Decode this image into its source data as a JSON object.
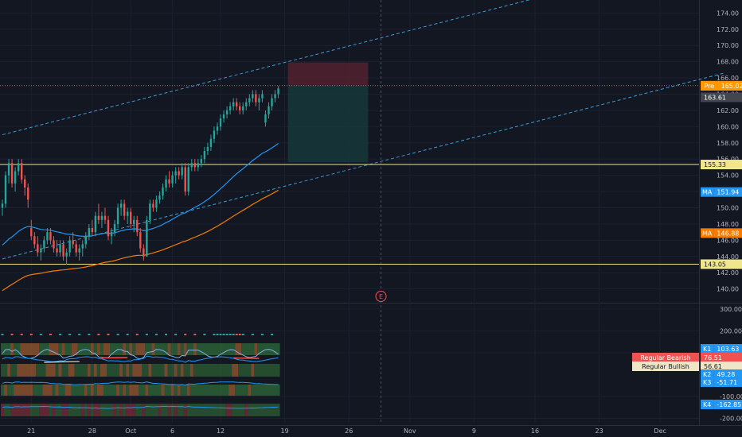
{
  "colors": {
    "background": "#131722",
    "grid": "#1c2030",
    "up": "#26a69a",
    "down": "#ef5350",
    "ma_fast": "#2196f3",
    "ma_slow": "#f57c00",
    "level": "#f0e68c",
    "channel": "#3d9ad1",
    "current": "#ef5350",
    "pre": "#ff9800"
  },
  "chart_data": [
    {
      "type": "candlestick",
      "title": "",
      "y_axis": {
        "ticks": [
          "174.00",
          "172.00",
          "170.00",
          "168.00",
          "166.00",
          "164.00",
          "162.00",
          "160.00",
          "158.00",
          "156.00",
          "154.00",
          "152.00",
          "150.00",
          "148.00",
          "146.00",
          "144.00",
          "142.00",
          "140.00"
        ],
        "range": [
          138.3,
          175.6
        ]
      },
      "x_axis": {
        "ticks": [
          "21",
          "28",
          "Oct",
          "6",
          "12",
          "19",
          "26",
          "Nov",
          "9",
          "16",
          "23",
          "Dec"
        ],
        "tick_bar_index": [
          9,
          28,
          40,
          53,
          68,
          88,
          108,
          127,
          147,
          166,
          186,
          205
        ]
      },
      "bars": [
        [
          150,
          151,
          149,
          150.5
        ],
        [
          150.5,
          154.5,
          150,
          154
        ],
        [
          154,
          156,
          153,
          155.5
        ],
        [
          155.5,
          156,
          152.5,
          153
        ],
        [
          153,
          155,
          152,
          154.5
        ],
        [
          154.5,
          156,
          154,
          155.5
        ],
        [
          155.5,
          156,
          153,
          153.5
        ],
        [
          153.5,
          154,
          151.5,
          152.5
        ],
        [
          152.5,
          153,
          150,
          151
        ],
        [
          147.5,
          148.5,
          146,
          146.5
        ],
        [
          146.5,
          147,
          145,
          145.5
        ],
        [
          145.5,
          146.5,
          144,
          144.5
        ],
        [
          144.5,
          145.5,
          143.5,
          145
        ],
        [
          145,
          146.5,
          144.5,
          146
        ],
        [
          146,
          147.5,
          145.5,
          147
        ],
        [
          147,
          147.5,
          145.5,
          146
        ],
        [
          146,
          146.5,
          144.5,
          145
        ],
        [
          145,
          146,
          144,
          144.5
        ],
        [
          144.5,
          146,
          144,
          145.5
        ],
        [
          145.5,
          146,
          143.5,
          144
        ],
        [
          144,
          145,
          143,
          144.5
        ],
        [
          144.5,
          146.5,
          144,
          146
        ],
        [
          146,
          147,
          145,
          145.5
        ],
        [
          145.5,
          146,
          144,
          144.5
        ],
        [
          144.5,
          145.5,
          143.5,
          145
        ],
        [
          145,
          146,
          144,
          145.5
        ],
        [
          145.5,
          147,
          145,
          146.5
        ],
        [
          146.5,
          148,
          146,
          147.5
        ],
        [
          147.5,
          148.5,
          146.5,
          147
        ],
        [
          147,
          149.5,
          146.5,
          149
        ],
        [
          149,
          150.5,
          148,
          148.5
        ],
        [
          148.5,
          149.5,
          147.5,
          149
        ],
        [
          149,
          150,
          148,
          148.5
        ],
        [
          148.5,
          149,
          146,
          146.5
        ],
        [
          146.5,
          147.5,
          145.5,
          147
        ],
        [
          147,
          148.5,
          146.5,
          148
        ],
        [
          148,
          150.5,
          147.5,
          150
        ],
        [
          150,
          151,
          149,
          150.5
        ],
        [
          150.5,
          151,
          148.5,
          149
        ],
        [
          149,
          150,
          148,
          149.5
        ],
        [
          149.5,
          150,
          147.5,
          148
        ],
        [
          148,
          149,
          147,
          148.5
        ],
        [
          148.5,
          149,
          146.5,
          147
        ],
        [
          147,
          147.5,
          144.5,
          145
        ],
        [
          145,
          145.5,
          143.5,
          144
        ],
        [
          144,
          149,
          144,
          148.5
        ],
        [
          148.5,
          151,
          148,
          150.5
        ],
        [
          150.5,
          151,
          149.5,
          150
        ],
        [
          150,
          151.5,
          149.5,
          151
        ],
        [
          151,
          152,
          150.5,
          151.5
        ],
        [
          151.5,
          153,
          151,
          152.5
        ],
        [
          152.5,
          154,
          152,
          153.5
        ],
        [
          153.5,
          154.5,
          152.5,
          153
        ],
        [
          153,
          154.5,
          152.5,
          154
        ],
        [
          154,
          155,
          153,
          154.5
        ],
        [
          154.5,
          155,
          153.5,
          154
        ],
        [
          154,
          155.5,
          153.5,
          155
        ],
        [
          155,
          155.5,
          151.5,
          152
        ],
        [
          152,
          155.5,
          151.5,
          155
        ],
        [
          155,
          156,
          154.5,
          155.5
        ],
        [
          155.5,
          156,
          154.5,
          155
        ],
        [
          155,
          156,
          154.5,
          155.5
        ],
        [
          155.5,
          156.5,
          155,
          156
        ],
        [
          156,
          157.5,
          155.5,
          157
        ],
        [
          157,
          158,
          156.5,
          157.5
        ],
        [
          157.5,
          159,
          157,
          158.5
        ],
        [
          158.5,
          160,
          158,
          159.5
        ],
        [
          159.5,
          160.5,
          159,
          160
        ],
        [
          160,
          161.5,
          159.5,
          161
        ],
        [
          161,
          162,
          160.5,
          161.5
        ],
        [
          161.5,
          162.5,
          161,
          162
        ],
        [
          162,
          163,
          161.5,
          162.5
        ],
        [
          162.5,
          163.5,
          162,
          163
        ],
        [
          163,
          163.5,
          162,
          162.5
        ],
        [
          162.5,
          163,
          161.5,
          162
        ],
        [
          162,
          163,
          161.5,
          162.5
        ],
        [
          162.5,
          163.5,
          162,
          163
        ],
        [
          163,
          164,
          162.5,
          163.5
        ],
        [
          163.5,
          164.5,
          163,
          164
        ],
        [
          164,
          164.5,
          162.5,
          163
        ],
        [
          163,
          164,
          162,
          163.5
        ],
        [
          163.5,
          164.5,
          163,
          164
        ],
        [
          160.5,
          162,
          160,
          161.5
        ],
        [
          161.5,
          163,
          161,
          162.5
        ],
        [
          162.5,
          164,
          162,
          163.5
        ],
        [
          163.5,
          164.5,
          163,
          164
        ],
        [
          164,
          165,
          163.5,
          164.7
        ]
      ],
      "ma_fast_start": 145.2,
      "ma_slow_start": 139.6,
      "price_labels": [
        {
          "role": "current",
          "text": "165.05",
          "value": 165.05
        },
        {
          "role": "pre",
          "prefix": "Pre",
          "text": "165.02",
          "value": 165.02
        },
        {
          "role": "last",
          "text": "163.61",
          "value": 163.61
        },
        {
          "role": "level",
          "text": "155.33",
          "value": 155.33
        },
        {
          "role": "ma_fast",
          "prefix": "MA",
          "text": "151.94",
          "value": 151.94
        },
        {
          "role": "ma_slow",
          "prefix": "MA",
          "text": "146.88",
          "value": 146.88
        },
        {
          "role": "level",
          "text": "143.05",
          "value": 143.05
        }
      ],
      "horizontal_levels": [
        155.33,
        143.05,
        165.05
      ],
      "position_tool": {
        "start_bar": 89,
        "end_bar": 114,
        "entry": 165.05,
        "stop": 167.9,
        "target": 155.6
      },
      "channel_lines": [
        {
          "from_bar": 0,
          "from_value": 159.0,
          "to_bar": 173,
          "to_value": 176.5
        },
        {
          "from_bar": 0,
          "from_value": 143.7,
          "to_bar": 225,
          "to_value": 166.6
        }
      ],
      "earnings_marker": {
        "text": "E",
        "bar": 118
      },
      "vertical_marker_bar": 118
    },
    {
      "type": "oscillator",
      "title": "",
      "y_axis": {
        "ticks": [
          "300.00",
          "200.00",
          "100.00",
          "-100.00",
          "-200.00"
        ],
        "range": [
          -220,
          325
        ]
      },
      "price_labels": [
        {
          "prefix": "K1",
          "text": "103.63",
          "value": 103.63,
          "color": "#2196f3"
        },
        {
          "prefix": "Regular Bearish",
          "text": "76.51",
          "value": 76.51,
          "color": "#f05252"
        },
        {
          "prefix": "Regular Bullish",
          "text": "56.61",
          "value": 56.61,
          "color": "#efe6c8"
        },
        {
          "prefix": "K2",
          "text": "49.28",
          "value": 49.28,
          "color": "#2196f3"
        },
        {
          "prefix": "K3",
          "text": "-51.71",
          "value": -51.71,
          "color": "#2196f3"
        },
        {
          "prefix": "K4",
          "text": "-162.85",
          "value": -162.85,
          "color": "#2196f3"
        }
      ]
    }
  ]
}
